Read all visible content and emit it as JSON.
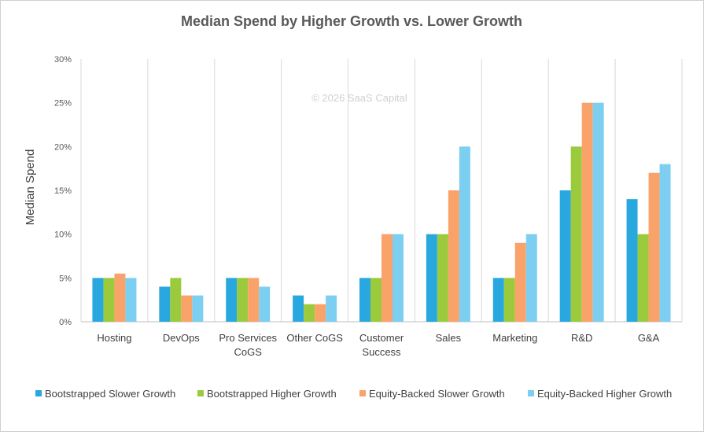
{
  "chart_data": {
    "type": "bar",
    "title": "Median Spend by Higher Growth vs. Lower Growth",
    "ylabel": "Median Spend",
    "xlabel": "",
    "ylim": [
      0,
      30
    ],
    "yticks": [
      "0%",
      "5%",
      "10%",
      "15%",
      "20%",
      "25%",
      "30%"
    ],
    "watermark": "© 2026 SaaS Capital",
    "grid": "vertical category separators",
    "legend_position": "bottom",
    "categories": [
      [
        "Hosting"
      ],
      [
        "DevOps"
      ],
      [
        "Pro Services",
        "CoGS"
      ],
      [
        "Other CoGS"
      ],
      [
        "Customer",
        "Success"
      ],
      [
        "Sales"
      ],
      [
        "Marketing"
      ],
      [
        "R&D"
      ],
      [
        "G&A"
      ]
    ],
    "series": [
      {
        "name": "Bootstrapped Slower Growth",
        "color": "#29a8e0",
        "values": [
          5,
          4,
          5,
          3,
          5,
          10,
          5,
          15,
          14
        ]
      },
      {
        "name": "Bootstrapped Higher Growth",
        "color": "#9bcb3c",
        "values": [
          5,
          5,
          5,
          2,
          5,
          10,
          5,
          20,
          10
        ]
      },
      {
        "name": "Equity-Backed Slower Growth",
        "color": "#f9a36b",
        "values": [
          5.5,
          3,
          5,
          2,
          10,
          15,
          9,
          25,
          17
        ]
      },
      {
        "name": "Equity-Backed Higher Growth",
        "color": "#7dcff1",
        "values": [
          5,
          3,
          4,
          3,
          10,
          20,
          10,
          25,
          18
        ]
      }
    ]
  }
}
